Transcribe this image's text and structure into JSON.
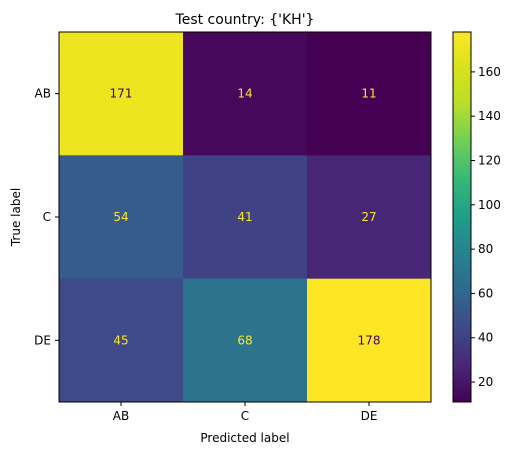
{
  "chart_data": {
    "type": "heatmap",
    "title": "Test country: {'KH'}",
    "xlabel": "Predicted label",
    "ylabel": "True label",
    "x_categories": [
      "AB",
      "C",
      "DE"
    ],
    "y_categories": [
      "AB",
      "C",
      "DE"
    ],
    "values": [
      [
        171,
        14,
        11
      ],
      [
        54,
        41,
        27
      ],
      [
        45,
        68,
        178
      ]
    ],
    "colormap": "viridis",
    "colorbar_range": [
      11,
      178
    ],
    "colorbar_ticks": [
      "20",
      "40",
      "60",
      "80",
      "100",
      "120",
      "140",
      "160"
    ],
    "text_colors": {
      "on_dark": "#fde725",
      "on_light": "#440154"
    },
    "grid": false
  }
}
